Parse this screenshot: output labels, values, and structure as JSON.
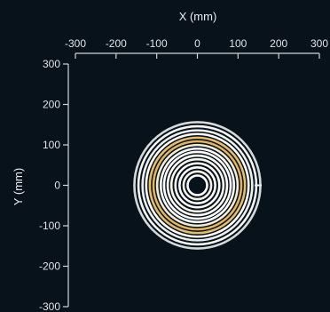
{
  "chart_data": {
    "type": "line",
    "xlabel": "X (mm)",
    "ylabel": "Y (mm)",
    "xlim": [
      -300,
      300
    ],
    "ylim": [
      -300,
      300
    ],
    "x_ticks": [
      -300,
      -200,
      -100,
      0,
      100,
      200,
      300
    ],
    "y_ticks": [
      300,
      200,
      100,
      0,
      -100,
      -200,
      -300
    ],
    "x_tick_labels": [
      "-300",
      "-200",
      "-100",
      "0",
      "100",
      "200",
      "300"
    ],
    "y_tick_labels": [
      "300",
      "200",
      "100",
      "0",
      "-100",
      "-200",
      "-300"
    ],
    "x_axis_position": "top",
    "grid": false,
    "center": [
      0,
      0
    ],
    "rings": [
      {
        "radius": 24,
        "color": "#ffffff"
      },
      {
        "radius": 34,
        "color": "#f4f1e4"
      },
      {
        "radius": 44,
        "color": "#ffffff"
      },
      {
        "radius": 54,
        "color": "#ffffff"
      },
      {
        "radius": 64,
        "color": "#fbf6e8"
      },
      {
        "radius": 73,
        "color": "#ffffff"
      },
      {
        "radius": 82,
        "color": "#ffffff"
      },
      {
        "radius": 90,
        "color": "#ffffff"
      },
      {
        "radius": 99,
        "color": "#f1ecd6"
      },
      {
        "radius": 108,
        "color": "#e3b45c"
      },
      {
        "radius": 117,
        "color": "#e6bd6b"
      },
      {
        "radius": 126,
        "color": "#ffffff"
      },
      {
        "radius": 135,
        "color": "#eef0f0"
      },
      {
        "radius": 145,
        "color": "#f6f6f4"
      },
      {
        "radius": 155,
        "color": "#d6d9da"
      }
    ]
  }
}
